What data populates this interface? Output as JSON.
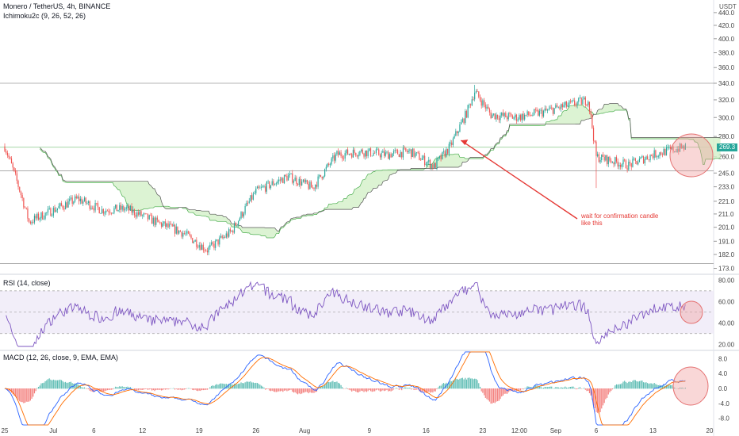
{
  "header": {
    "title": "Monero / TetherUS, 4h, BINANCE",
    "indicator": "Ichimoku2c (9, 26, 52, 26)",
    "currency": "USDT"
  },
  "panes": {
    "rsi_label": "RSI (14, close)",
    "macd_label": "MACD (12, 26, close, 9, EMA, EMA)"
  },
  "annotation": {
    "text_line1": "wait for confirmation candle",
    "text_line2": "like this"
  },
  "colors": {
    "up": "#26a69a",
    "down": "#ef5350",
    "cloud": "#d3f0c8",
    "rsi": "#7e57c2",
    "macd": "#2962ff",
    "signal": "#ff6d00",
    "annotation": "#e53935"
  },
  "chart_data": [
    {
      "type": "candlestick",
      "title": "Monero / TetherUS, 4h, BINANCE",
      "y_scale": "log",
      "yticks": [
        "440.0",
        "420.0",
        "400.0",
        "380.0",
        "360.0",
        "340.0",
        "320.0",
        "300.0",
        "280.0",
        "260.0",
        "245.0",
        "233.0",
        "221.0",
        "211.0",
        "201.0",
        "191.0",
        "182.0",
        "173.0"
      ],
      "current_price": "269.3",
      "xticks": [
        "25",
        "Jul",
        "6",
        "12",
        "19",
        "26",
        "Aug",
        "9",
        "16",
        "23",
        "12:00",
        "Sep",
        "6",
        "13",
        "20"
      ],
      "price_path": [
        {
          "date": "Jun 25",
          "price": 270
        },
        {
          "date": "Jun 28",
          "price": 205
        },
        {
          "date": "Jul 1",
          "price": 214
        },
        {
          "date": "Jul 4",
          "price": 223
        },
        {
          "date": "Jul 7",
          "price": 214
        },
        {
          "date": "Jul 10",
          "price": 215
        },
        {
          "date": "Jul 14",
          "price": 204
        },
        {
          "date": "Jul 17",
          "price": 197
        },
        {
          "date": "Jul 20",
          "price": 185
        },
        {
          "date": "Jul 23",
          "price": 198
        },
        {
          "date": "Jul 26",
          "price": 229
        },
        {
          "date": "Jul 30",
          "price": 242
        },
        {
          "date": "Aug 2",
          "price": 232
        },
        {
          "date": "Aug 5",
          "price": 262
        },
        {
          "date": "Aug 8",
          "price": 265
        },
        {
          "date": "Aug 11",
          "price": 262
        },
        {
          "date": "Aug 14",
          "price": 265
        },
        {
          "date": "Aug 17",
          "price": 251
        },
        {
          "date": "Aug 19",
          "price": 270
        },
        {
          "date": "Aug 21",
          "price": 305
        },
        {
          "date": "Aug 22",
          "price": 330
        },
        {
          "date": "Aug 24",
          "price": 303
        },
        {
          "date": "Aug 27",
          "price": 300
        },
        {
          "date": "Aug 30",
          "price": 305
        },
        {
          "date": "Sep 3",
          "price": 315
        },
        {
          "date": "Sep 5",
          "price": 320
        },
        {
          "date": "Sep 6",
          "price": 260
        },
        {
          "date": "Sep 7",
          "price": 258
        },
        {
          "date": "Sep 10",
          "price": 252
        },
        {
          "date": "Sep 13",
          "price": 262
        },
        {
          "date": "Sep 15",
          "price": 266
        },
        {
          "date": "Sep 17",
          "price": 269.3
        }
      ],
      "horizontal_levels": [
        340.0,
        269.3,
        247.0,
        176.0
      ],
      "annotations": [
        "wait for confirmation candle",
        "like this"
      ]
    },
    {
      "type": "line",
      "title": "RSI (14, close)",
      "yticks": [
        "80.00",
        "60.00",
        "40.00",
        "20.00"
      ],
      "ylim": [
        15,
        84
      ],
      "bands": [
        70,
        50,
        30
      ]
    },
    {
      "type": "bar+line",
      "title": "MACD (12, 26, close, 9, EMA, EMA)",
      "yticks": [
        "8.0",
        "4.0",
        "0.0",
        "-4.0",
        "-8.0"
      ],
      "ylim": [
        -10,
        10
      ]
    }
  ]
}
